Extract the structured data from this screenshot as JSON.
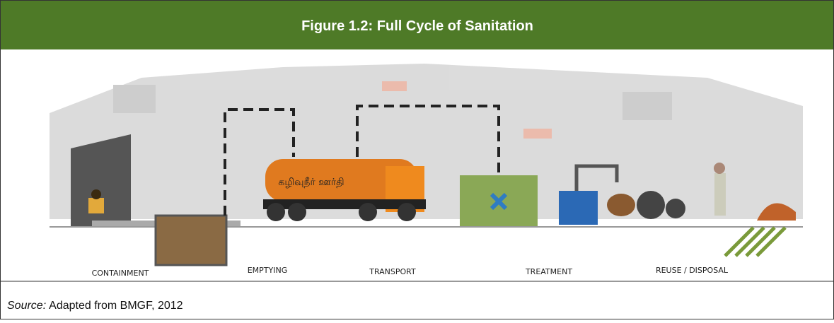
{
  "header": {
    "title": "Figure 1.2: Full Cycle of Sanitation"
  },
  "stages": [
    "CONTAINMENT",
    "EMPTYING",
    "TRANSPORT",
    "TREATMENT",
    "REUSE / DISPOSAL"
  ],
  "truck_text": "கழிவுநீர் ஊர்தி",
  "source": {
    "label": "Source:",
    "text": "Adapted from BMGF, 2012"
  }
}
